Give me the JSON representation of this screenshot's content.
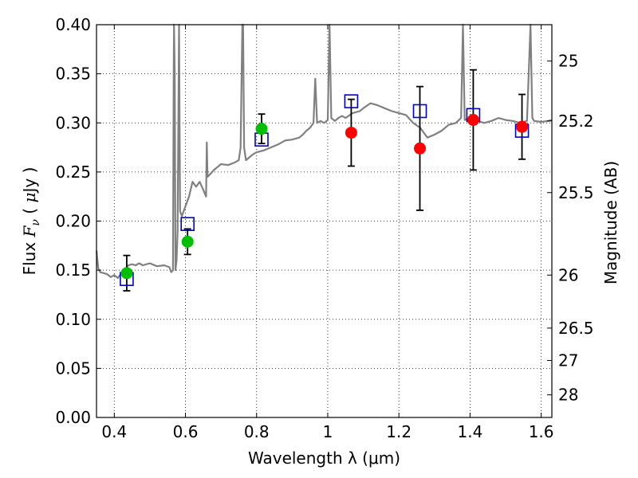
{
  "chart_data": {
    "type": "scatter",
    "xlabel": "Wavelength  λ (μm)",
    "ylabel_parts": [
      "Flux ",
      "F",
      "ν",
      " ( ",
      "μ",
      "Jy )"
    ],
    "ylabel_right": "Magnitude (AB)",
    "xlim": [
      0.35,
      1.63
    ],
    "ylim": [
      0,
      0.4
    ],
    "grid": true,
    "x_ticks": [
      0.4,
      0.6,
      0.8,
      1.0,
      1.2,
      1.4,
      1.6
    ],
    "x_tick_labels": [
      "0.4",
      "0.6",
      "0.8",
      "1",
      "1.2",
      "1.4",
      "1.6"
    ],
    "y_ticks": [
      0,
      0.05,
      0.1,
      0.15,
      0.2,
      0.25,
      0.3,
      0.35,
      0.4
    ],
    "y_tick_labels": [
      "0.00",
      "0.05",
      "0.10",
      "0.15",
      "0.20",
      "0.25",
      "0.30",
      "0.35",
      "0.40"
    ],
    "right_ticks": [
      {
        "label": "25",
        "flux": 0.363
      },
      {
        "label": "25.2",
        "flux": 0.302
      },
      {
        "label": "25.5",
        "flux": 0.229
      },
      {
        "label": "26",
        "flux": 0.145
      },
      {
        "label": "26.5",
        "flux": 0.091
      },
      {
        "label": "27",
        "flux": 0.058
      },
      {
        "label": "28",
        "flux": 0.023
      }
    ],
    "colors": {
      "model": "#808080",
      "green": "#00bf00",
      "red": "#ff0000",
      "square": "#0000cc",
      "errorbar": "#000000",
      "grid": "#000000"
    },
    "model_spectrum": [
      [
        0.35,
        0.17
      ],
      [
        0.355,
        0.152
      ],
      [
        0.36,
        0.148
      ],
      [
        0.37,
        0.147
      ],
      [
        0.38,
        0.146
      ],
      [
        0.39,
        0.143
      ],
      [
        0.4,
        0.145
      ],
      [
        0.41,
        0.142
      ],
      [
        0.42,
        0.147
      ],
      [
        0.43,
        0.151
      ],
      [
        0.44,
        0.155
      ],
      [
        0.45,
        0.156
      ],
      [
        0.46,
        0.155
      ],
      [
        0.47,
        0.157
      ],
      [
        0.48,
        0.155
      ],
      [
        0.5,
        0.157
      ],
      [
        0.52,
        0.154
      ],
      [
        0.54,
        0.155
      ],
      [
        0.555,
        0.153
      ],
      [
        0.56,
        0.148
      ],
      [
        0.565,
        0.15
      ],
      [
        0.567,
        0.35
      ],
      [
        0.568,
        0.42
      ],
      [
        0.57,
        0.35
      ],
      [
        0.572,
        0.15
      ],
      [
        0.575,
        0.16
      ],
      [
        0.578,
        0.19
      ],
      [
        0.582,
        0.42
      ],
      [
        0.585,
        0.21
      ],
      [
        0.59,
        0.205
      ],
      [
        0.6,
        0.215
      ],
      [
        0.61,
        0.225
      ],
      [
        0.62,
        0.24
      ],
      [
        0.63,
        0.235
      ],
      [
        0.64,
        0.24
      ],
      [
        0.65,
        0.232
      ],
      [
        0.658,
        0.225
      ],
      [
        0.66,
        0.28
      ],
      [
        0.662,
        0.245
      ],
      [
        0.67,
        0.248
      ],
      [
        0.68,
        0.252
      ],
      [
        0.69,
        0.255
      ],
      [
        0.7,
        0.258
      ],
      [
        0.72,
        0.257
      ],
      [
        0.74,
        0.26
      ],
      [
        0.75,
        0.262
      ],
      [
        0.755,
        0.275
      ],
      [
        0.76,
        0.42
      ],
      [
        0.762,
        0.42
      ],
      [
        0.765,
        0.275
      ],
      [
        0.77,
        0.262
      ],
      [
        0.78,
        0.265
      ],
      [
        0.79,
        0.268
      ],
      [
        0.8,
        0.27
      ],
      [
        0.82,
        0.272
      ],
      [
        0.84,
        0.275
      ],
      [
        0.86,
        0.278
      ],
      [
        0.88,
        0.282
      ],
      [
        0.9,
        0.283
      ],
      [
        0.92,
        0.285
      ],
      [
        0.93,
        0.288
      ],
      [
        0.94,
        0.292
      ],
      [
        0.95,
        0.295
      ],
      [
        0.96,
        0.3
      ],
      [
        0.965,
        0.345
      ],
      [
        0.97,
        0.3
      ],
      [
        0.98,
        0.302
      ],
      [
        0.99,
        0.3
      ],
      [
        1.0,
        0.303
      ],
      [
        1.005,
        0.42
      ],
      [
        1.01,
        0.305
      ],
      [
        1.02,
        0.302
      ],
      [
        1.03,
        0.305
      ],
      [
        1.04,
        0.307
      ],
      [
        1.05,
        0.305
      ],
      [
        1.07,
        0.31
      ],
      [
        1.09,
        0.312
      ],
      [
        1.1,
        0.315
      ],
      [
        1.12,
        0.32
      ],
      [
        1.14,
        0.318
      ],
      [
        1.16,
        0.315
      ],
      [
        1.18,
        0.312
      ],
      [
        1.2,
        0.31
      ],
      [
        1.22,
        0.308
      ],
      [
        1.24,
        0.3
      ],
      [
        1.26,
        0.295
      ],
      [
        1.28,
        0.285
      ],
      [
        1.3,
        0.288
      ],
      [
        1.32,
        0.292
      ],
      [
        1.34,
        0.298
      ],
      [
        1.36,
        0.3
      ],
      [
        1.375,
        0.305
      ],
      [
        1.38,
        0.42
      ],
      [
        1.385,
        0.303
      ],
      [
        1.4,
        0.305
      ],
      [
        1.42,
        0.302
      ],
      [
        1.44,
        0.3
      ],
      [
        1.46,
        0.302
      ],
      [
        1.48,
        0.305
      ],
      [
        1.5,
        0.303
      ],
      [
        1.52,
        0.302
      ],
      [
        1.54,
        0.3
      ],
      [
        1.56,
        0.302
      ],
      [
        1.57,
        0.42
      ],
      [
        1.575,
        0.305
      ],
      [
        1.58,
        0.302
      ],
      [
        1.6,
        0.301
      ],
      [
        1.62,
        0.302
      ],
      [
        1.63,
        0.303
      ]
    ],
    "observed_green": [
      {
        "x": 0.435,
        "y": 0.147,
        "err": 0.018
      },
      {
        "x": 0.606,
        "y": 0.179,
        "err": 0.013
      },
      {
        "x": 0.814,
        "y": 0.294,
        "err": 0.015
      }
    ],
    "observed_red": [
      {
        "x": 1.066,
        "y": 0.29,
        "err": 0.034
      },
      {
        "x": 1.259,
        "y": 0.274,
        "err": 0.063
      },
      {
        "x": 1.409,
        "y": 0.303,
        "err": 0.051
      },
      {
        "x": 1.546,
        "y": 0.296,
        "err": 0.033
      }
    ],
    "model_squares": [
      {
        "x": 0.435,
        "y": 0.141
      },
      {
        "x": 0.606,
        "y": 0.197
      },
      {
        "x": 0.814,
        "y": 0.283
      },
      {
        "x": 1.066,
        "y": 0.322
      },
      {
        "x": 1.259,
        "y": 0.312
      },
      {
        "x": 1.409,
        "y": 0.308
      },
      {
        "x": 1.546,
        "y": 0.292
      }
    ]
  }
}
